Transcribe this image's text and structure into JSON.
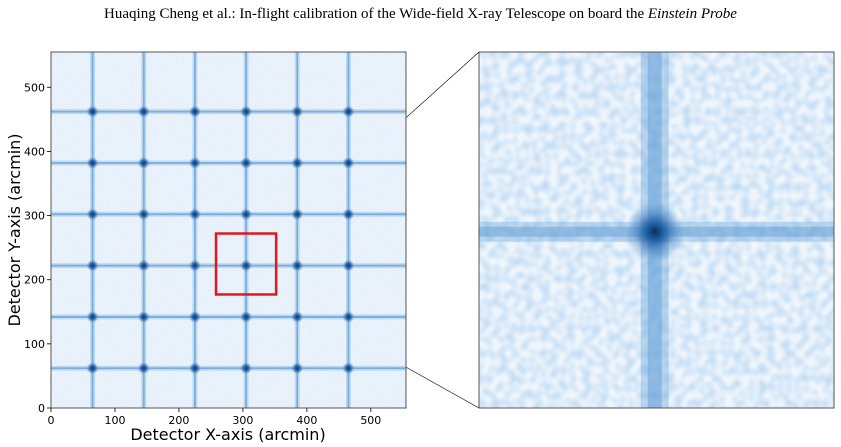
{
  "header": {
    "text_plain": "Huaqing Cheng et al.: In-flight calibration of the Wide-field X-ray Telescope on board the ",
    "text_italic": "Einstein Probe"
  },
  "figure": {
    "left_panel": {
      "xlabel": "Detector X-axis (arcmin)",
      "ylabel": "Detector Y-axis (arcmin)",
      "xticks": [
        "0",
        "100",
        "200",
        "300",
        "400",
        "500"
      ],
      "yticks": [
        "0",
        "100",
        "200",
        "300",
        "400",
        "500"
      ],
      "xlim": [
        0,
        555
      ],
      "ylim": [
        0,
        555
      ],
      "grid_lines_x": [
        65,
        145,
        225,
        305,
        385,
        465
      ],
      "grid_lines_y": [
        62,
        142,
        222,
        302,
        382,
        462
      ],
      "zoom_box": {
        "x": [
          258,
          352
        ],
        "y": [
          177,
          272
        ],
        "color": "#e3161b"
      }
    },
    "right_panel": {
      "cross_center_fraction": [
        0.495,
        0.505
      ]
    },
    "colors": {
      "background": "#eef5fc",
      "line": "#5b9bd5",
      "knot": "#0d4a8c"
    }
  }
}
